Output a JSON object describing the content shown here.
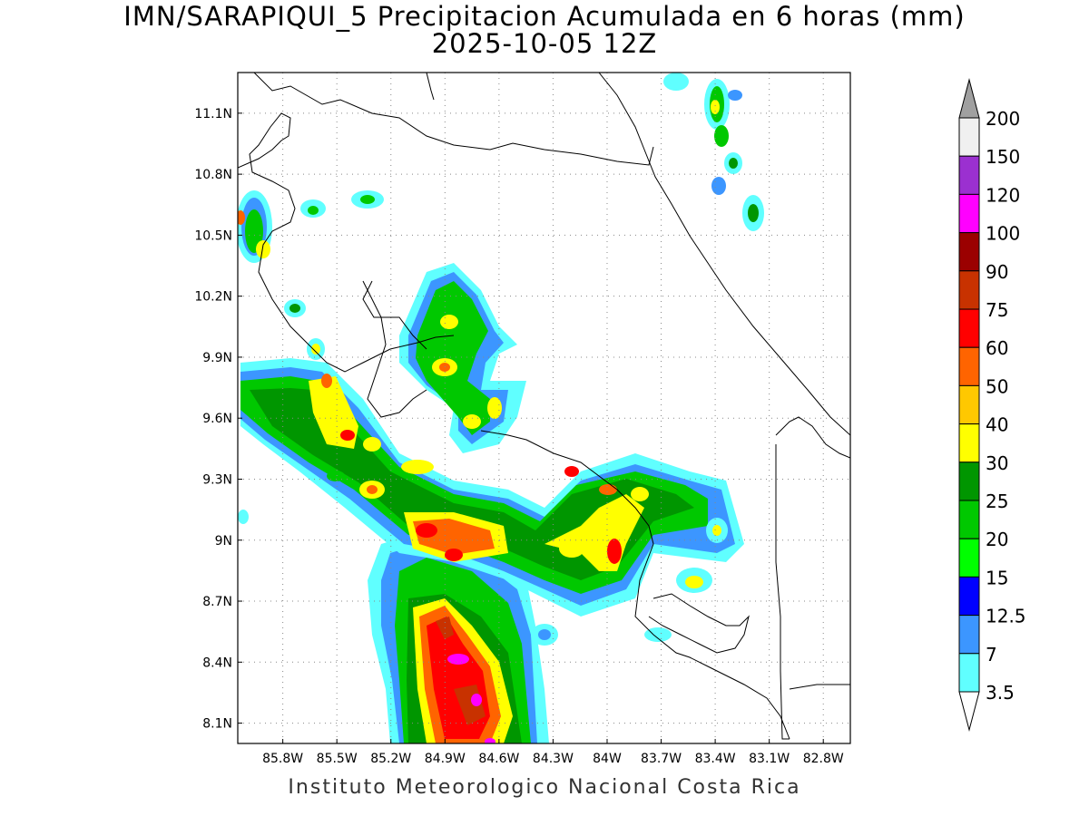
{
  "title": "IMN/SARAPIQUI_5 Precipitacion Acumulada en 6 horas (mm)",
  "subtitle": "2025-10-05 12Z",
  "credit": "Instituto Meteorologico Nacional Costa Rica",
  "map": {
    "lon_range": [
      -86.05,
      -82.65
    ],
    "lat_range": [
      8.0,
      11.3
    ],
    "lat_ticks": [
      "11.1N",
      "10.8N",
      "10.5N",
      "10.2N",
      "9.9N",
      "9.6N",
      "9.3N",
      "9N",
      "8.7N",
      "8.4N",
      "8.1N"
    ],
    "lon_ticks": [
      "85.8W",
      "85.5W",
      "85.2W",
      "84.9W",
      "84.6W",
      "84.3W",
      "84W",
      "83.7W",
      "83.4W",
      "83.1W",
      "82.8W"
    ],
    "grid": true,
    "basemap": "coastlines-and-borders"
  },
  "colorbar": {
    "labels": [
      "200",
      "150",
      "120",
      "100",
      "90",
      "75",
      "60",
      "50",
      "40",
      "30",
      "25",
      "20",
      "15",
      "12.5",
      "7",
      "3.5"
    ],
    "colors": [
      "#a0a0a0",
      "#f0f0f0",
      "#9b30d0",
      "#ff00ff",
      "#9b0000",
      "#c83200",
      "#ff0000",
      "#ff6400",
      "#ffc800",
      "#ffff00",
      "#009600",
      "#00c800",
      "#00ff00",
      "#0000ff",
      "#3c96ff",
      "#60ffff"
    ]
  }
}
